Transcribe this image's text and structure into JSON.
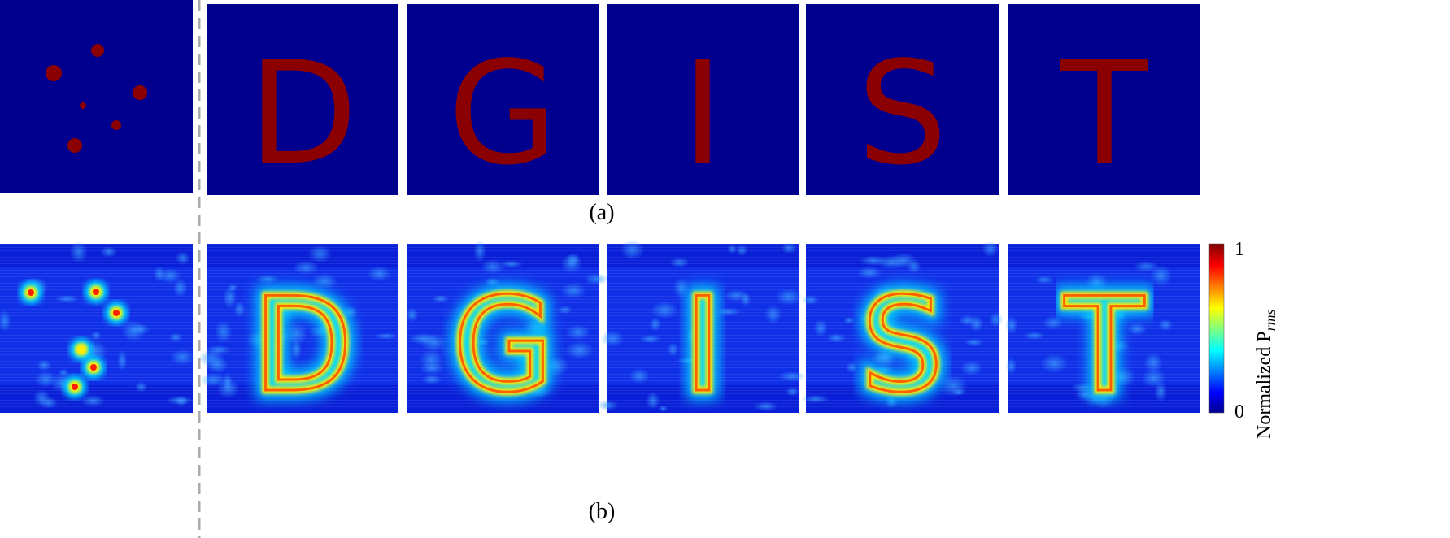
{
  "top_row": {
    "caption": "(a)",
    "letters": [
      "D",
      "G",
      "I",
      "S",
      "T"
    ]
  },
  "bottom_row": {
    "caption": "(b)",
    "letters": [
      "D",
      "G",
      "I",
      "S",
      "T"
    ]
  },
  "colorbar": {
    "title": "Normalized P",
    "title_subscript": "rms",
    "max_label": "1",
    "min_label": "0"
  }
}
